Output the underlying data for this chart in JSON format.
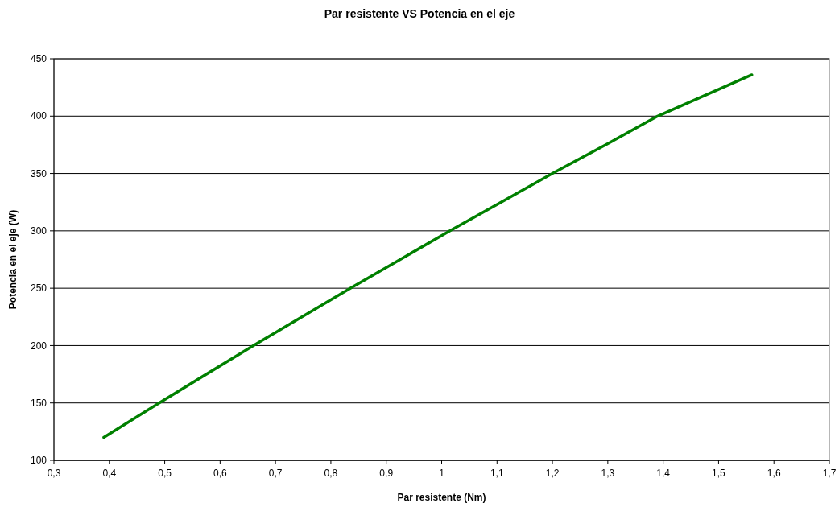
{
  "chart_data": {
    "type": "line",
    "title": "Par resistente VS Potencia en el eje",
    "xlabel": "Par resistente (Nm)",
    "ylabel": "Potencia en el eje (W)",
    "x": [
      0.39,
      0.49,
      0.66,
      0.835,
      1.015,
      1.2,
      1.3,
      1.39,
      1.56
    ],
    "series": [
      {
        "color": "#008000",
        "values": [
          120,
          150,
          200,
          250,
          300,
          350,
          376,
          400,
          436
        ]
      }
    ],
    "xlim": [
      0.3,
      1.7
    ],
    "ylim": [
      100,
      450
    ],
    "xticks": [
      {
        "value": 0.3,
        "label": "0,3"
      },
      {
        "value": 0.4,
        "label": "0,4"
      },
      {
        "value": 0.5,
        "label": "0,5"
      },
      {
        "value": 0.6,
        "label": "0,6"
      },
      {
        "value": 0.7,
        "label": "0,7"
      },
      {
        "value": 0.8,
        "label": "0,8"
      },
      {
        "value": 0.9,
        "label": "0,9"
      },
      {
        "value": 1,
        "label": "1"
      },
      {
        "value": 1.1,
        "label": "1,1"
      },
      {
        "value": 1.2,
        "label": "1,2"
      },
      {
        "value": 1.3,
        "label": "1,3"
      },
      {
        "value": 1.4,
        "label": "1,4"
      },
      {
        "value": 1.5,
        "label": "1,5"
      },
      {
        "value": 1.6,
        "label": "1,6"
      },
      {
        "value": 1.7,
        "label": "1,7"
      }
    ],
    "yticks": [
      100,
      150,
      200,
      250,
      300,
      350,
      400,
      450
    ],
    "grid": "y",
    "marker": "none",
    "line_style": "solid"
  }
}
